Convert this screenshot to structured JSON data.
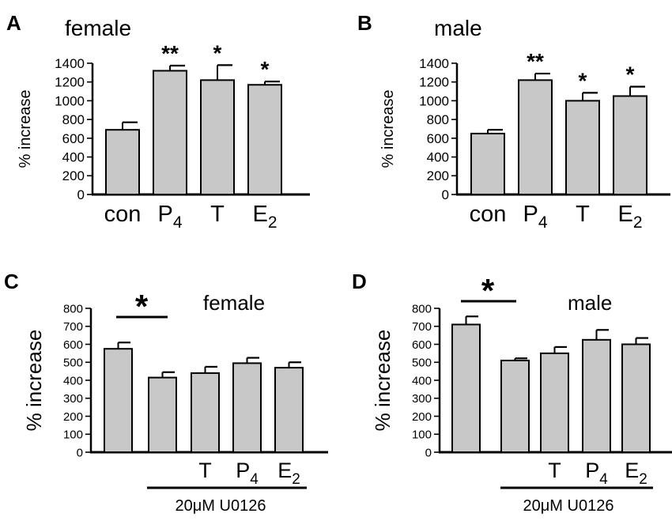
{
  "chart_data": [
    {
      "type": "bar",
      "panel_label": "A",
      "title": "female",
      "ylabel": "% increase",
      "ylim": [
        0,
        1400
      ],
      "yticks": [
        "0",
        "200",
        "400",
        "600",
        "800",
        "1000",
        "1200",
        "1400"
      ],
      "categories": [
        {
          "base": "con",
          "sub": ""
        },
        {
          "base": "P",
          "sub": "4"
        },
        {
          "base": "T",
          "sub": ""
        },
        {
          "base": "E",
          "sub": "2"
        }
      ],
      "values": [
        690,
        1320,
        1220,
        1170
      ],
      "errors": [
        80,
        55,
        160,
        35
      ],
      "significance": [
        "",
        "**",
        "*",
        "*"
      ],
      "bar_color": "#c8c8c8"
    },
    {
      "type": "bar",
      "panel_label": "B",
      "title": "male",
      "ylabel": "% increase",
      "ylim": [
        0,
        1400
      ],
      "yticks": [
        "0",
        "200",
        "400",
        "600",
        "800",
        "1000",
        "1200",
        "1400"
      ],
      "categories": [
        {
          "base": "con",
          "sub": ""
        },
        {
          "base": "P",
          "sub": "4"
        },
        {
          "base": "T",
          "sub": ""
        },
        {
          "base": "E",
          "sub": "2"
        }
      ],
      "values": [
        650,
        1220,
        1000,
        1050
      ],
      "errors": [
        40,
        70,
        85,
        100
      ],
      "significance": [
        "",
        "**",
        "*",
        "*"
      ],
      "bar_color": "#c8c8c8"
    },
    {
      "type": "bar",
      "panel_label": "C",
      "title": "female",
      "ylabel": "% increase",
      "ylim": [
        0,
        800
      ],
      "yticks": [
        "0",
        "100",
        "200",
        "300",
        "400",
        "500",
        "600",
        "700",
        "800"
      ],
      "categories": [
        {
          "base": "",
          "sub": ""
        },
        {
          "base": "",
          "sub": ""
        },
        {
          "base": "T",
          "sub": ""
        },
        {
          "base": "P",
          "sub": "4"
        },
        {
          "base": "E",
          "sub": "2"
        }
      ],
      "values": [
        575,
        415,
        440,
        495,
        470
      ],
      "errors": [
        35,
        30,
        35,
        30,
        30
      ],
      "comparison_star": "*",
      "treatment_label": "20μM U0126",
      "bar_color": "#c8c8c8"
    },
    {
      "type": "bar",
      "panel_label": "D",
      "title": "male",
      "ylabel": "% increase",
      "ylim": [
        0,
        800
      ],
      "yticks": [
        "0",
        "100",
        "200",
        "300",
        "400",
        "500",
        "600",
        "700",
        "800"
      ],
      "categories": [
        {
          "base": "",
          "sub": ""
        },
        {
          "base": "",
          "sub": ""
        },
        {
          "base": "T",
          "sub": ""
        },
        {
          "base": "P",
          "sub": "4"
        },
        {
          "base": "E",
          "sub": "2"
        }
      ],
      "values": [
        710,
        510,
        550,
        625,
        600
      ],
      "errors": [
        45,
        12,
        35,
        55,
        35
      ],
      "comparison_star": "*",
      "treatment_label": "20μM U0126",
      "bar_color": "#c8c8c8"
    }
  ]
}
